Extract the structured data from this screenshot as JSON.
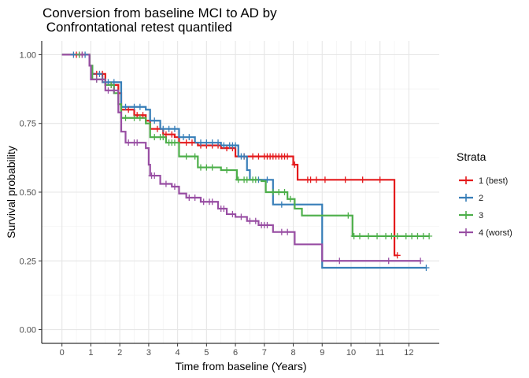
{
  "chart_data": {
    "type": "line",
    "step": true,
    "title_lines": [
      "Conversion from baseline MCI to AD by",
      " Confrontational retest quantiled"
    ],
    "xlabel": "Time from baseline (Years)",
    "ylabel": "Survival probability",
    "xlim": [
      -0.7,
      13.05
    ],
    "ylim": [
      -0.05,
      1.05
    ],
    "xticks": [
      0,
      1,
      2,
      3,
      4,
      5,
      6,
      7,
      8,
      9,
      10,
      11,
      12
    ],
    "yticks": [
      0.0,
      0.25,
      0.5,
      0.75,
      1.0
    ],
    "ytick_labels": [
      "0.00",
      "0.25",
      "0.50",
      "0.75",
      "1.00"
    ],
    "grid": true,
    "legend": {
      "title": "Strata",
      "position": "right"
    },
    "series": [
      {
        "name": "1 (best)",
        "color": "#e41a1c",
        "steps": [
          [
            0,
            1.0
          ],
          [
            0.95,
            0.96
          ],
          [
            1.05,
            0.93
          ],
          [
            1.5,
            0.89
          ],
          [
            1.95,
            0.86
          ],
          [
            2.05,
            0.8
          ],
          [
            2.5,
            0.78
          ],
          [
            2.9,
            0.76
          ],
          [
            3.05,
            0.73
          ],
          [
            3.5,
            0.71
          ],
          [
            3.9,
            0.7
          ],
          [
            4.05,
            0.68
          ],
          [
            4.7,
            0.67
          ],
          [
            5.5,
            0.66
          ],
          [
            6.0,
            0.63
          ],
          [
            8.0,
            0.6
          ],
          [
            8.15,
            0.545
          ],
          [
            11.5,
            0.27
          ]
        ],
        "end": 11.6,
        "censor": [
          0.5,
          0.7,
          1.2,
          1.4,
          1.7,
          2.3,
          2.6,
          2.8,
          3.3,
          3.6,
          3.8,
          4.3,
          4.5,
          4.8,
          5.0,
          5.2,
          5.4,
          5.7,
          5.9,
          6.3,
          6.6,
          6.8,
          7.0,
          7.1,
          7.2,
          7.3,
          7.4,
          7.5,
          7.6,
          7.7,
          7.8,
          8.05,
          8.5,
          8.6,
          8.8,
          9.1,
          9.8,
          10.4,
          11.0,
          11.6
        ]
      },
      {
        "name": "2",
        "color": "#377eb8",
        "steps": [
          [
            0,
            1.0
          ],
          [
            0.95,
            0.96
          ],
          [
            1.05,
            0.93
          ],
          [
            1.4,
            0.9
          ],
          [
            2.05,
            0.81
          ],
          [
            2.9,
            0.8
          ],
          [
            3.05,
            0.76
          ],
          [
            3.4,
            0.73
          ],
          [
            4.05,
            0.7
          ],
          [
            4.6,
            0.68
          ],
          [
            5.5,
            0.67
          ],
          [
            6.1,
            0.63
          ],
          [
            6.4,
            0.58
          ],
          [
            6.5,
            0.545
          ],
          [
            7.3,
            0.455
          ],
          [
            9.0,
            0.225
          ]
        ],
        "end": 12.6,
        "censor": [
          0.4,
          0.6,
          0.8,
          1.3,
          1.6,
          1.8,
          2.2,
          2.5,
          2.7,
          3.2,
          3.5,
          3.7,
          3.9,
          4.2,
          4.4,
          4.8,
          5.0,
          5.2,
          5.4,
          5.6,
          5.8,
          5.9,
          6.0,
          6.2,
          6.3,
          6.8,
          7.1,
          7.6,
          12.6
        ]
      },
      {
        "name": "3",
        "color": "#4daf4a",
        "steps": [
          [
            0,
            1.0
          ],
          [
            0.95,
            0.96
          ],
          [
            1.05,
            0.91
          ],
          [
            1.5,
            0.89
          ],
          [
            1.8,
            0.86
          ],
          [
            1.95,
            0.82
          ],
          [
            2.05,
            0.77
          ],
          [
            2.9,
            0.75
          ],
          [
            3.05,
            0.7
          ],
          [
            3.6,
            0.68
          ],
          [
            4.05,
            0.63
          ],
          [
            4.7,
            0.59
          ],
          [
            5.5,
            0.58
          ],
          [
            6.05,
            0.545
          ],
          [
            6.9,
            0.54
          ],
          [
            7.05,
            0.5
          ],
          [
            7.8,
            0.475
          ],
          [
            8.05,
            0.44
          ],
          [
            8.3,
            0.415
          ],
          [
            10.05,
            0.34
          ]
        ],
        "end": 12.7,
        "censor": [
          0.6,
          1.2,
          1.4,
          1.7,
          2.2,
          2.5,
          2.7,
          3.2,
          3.4,
          3.5,
          3.7,
          3.8,
          3.9,
          4.3,
          4.6,
          4.8,
          5.0,
          5.2,
          5.7,
          6.1,
          6.3,
          6.4,
          6.6,
          6.7,
          7.3,
          7.5,
          7.7,
          7.9,
          9.9,
          10.1,
          10.3,
          10.6,
          10.9,
          11.2,
          11.4,
          11.6,
          11.9,
          12.1,
          12.3,
          12.5,
          12.7
        ]
      },
      {
        "name": "4 (worst)",
        "color": "#984ea3",
        "steps": [
          [
            0,
            1.0
          ],
          [
            0.95,
            0.96
          ],
          [
            1.0,
            0.91
          ],
          [
            1.5,
            0.87
          ],
          [
            1.95,
            0.79
          ],
          [
            2.05,
            0.72
          ],
          [
            2.2,
            0.68
          ],
          [
            2.9,
            0.66
          ],
          [
            3.0,
            0.6
          ],
          [
            3.05,
            0.56
          ],
          [
            3.4,
            0.53
          ],
          [
            3.8,
            0.52
          ],
          [
            4.05,
            0.495
          ],
          [
            4.3,
            0.48
          ],
          [
            4.8,
            0.465
          ],
          [
            5.4,
            0.44
          ],
          [
            5.7,
            0.42
          ],
          [
            6.0,
            0.41
          ],
          [
            6.4,
            0.395
          ],
          [
            6.8,
            0.38
          ],
          [
            7.3,
            0.355
          ],
          [
            8.05,
            0.31
          ],
          [
            9.0,
            0.25
          ]
        ],
        "end": 12.4,
        "censor": [
          0.7,
          1.2,
          1.4,
          1.6,
          1.8,
          2.3,
          2.5,
          2.6,
          3.1,
          3.2,
          3.6,
          3.9,
          4.4,
          4.6,
          4.9,
          5.1,
          5.2,
          5.5,
          5.6,
          5.9,
          6.2,
          6.5,
          6.7,
          6.9,
          7.0,
          7.1,
          7.6,
          7.8,
          9.6,
          11.3,
          12.4
        ]
      }
    ]
  }
}
